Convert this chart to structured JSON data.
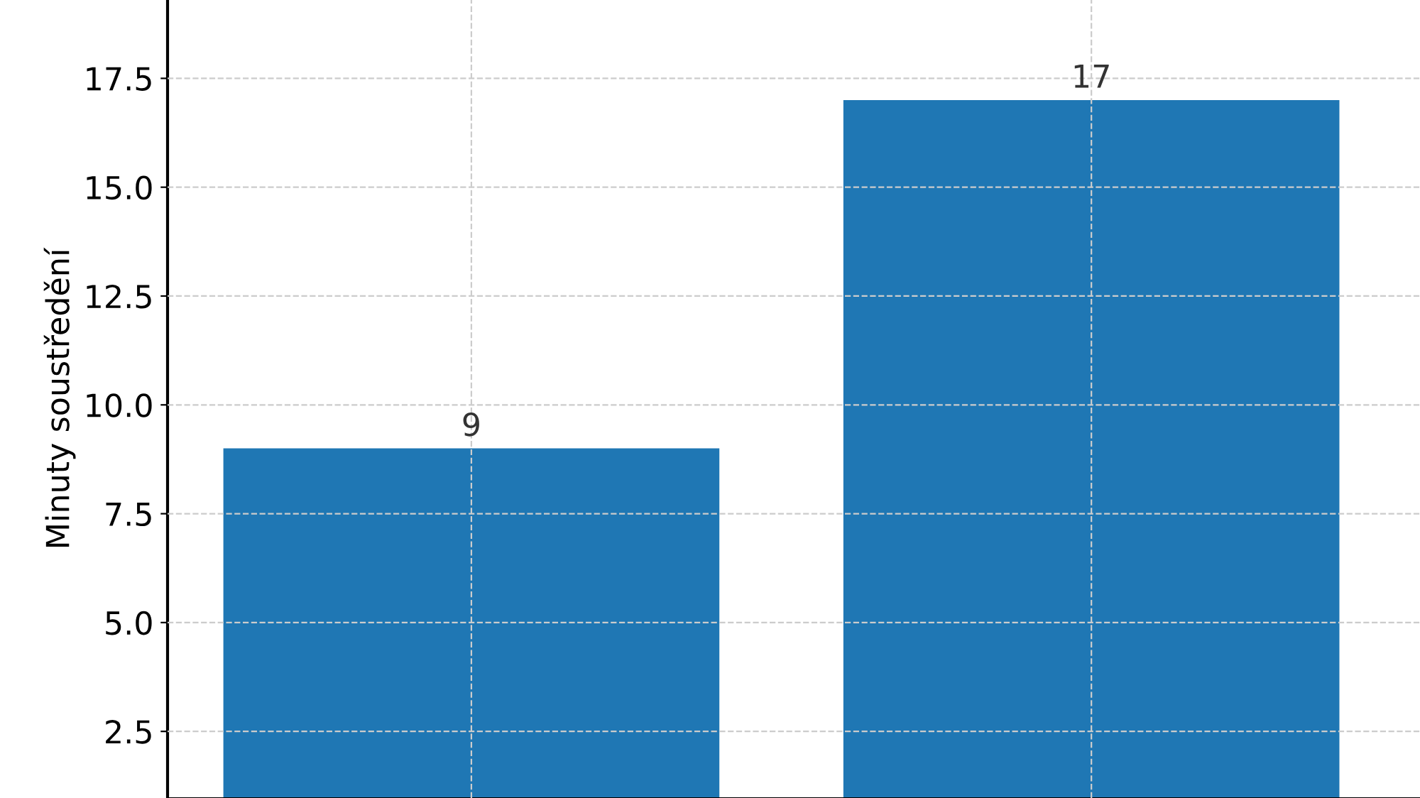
{
  "chart_data": {
    "type": "bar",
    "ylabel": "Minuty soustředění",
    "categories": [
      null,
      null
    ],
    "values": [
      9,
      17
    ],
    "color": "#1f77b4",
    "ylim": [
      0.97,
      19.3
    ],
    "yticks": [
      {
        "value": 2.5,
        "label": "2.5"
      },
      {
        "value": 5,
        "label": "5.0"
      },
      {
        "value": 7.5,
        "label": "7.5"
      },
      {
        "value": 10,
        "label": "10.0"
      },
      {
        "value": 12.5,
        "label": "12.5"
      },
      {
        "value": 15,
        "label": "15.0"
      },
      {
        "value": 17.5,
        "label": "17.5"
      }
    ],
    "grid": true,
    "data_labels": true,
    "tick_labels": "y"
  }
}
